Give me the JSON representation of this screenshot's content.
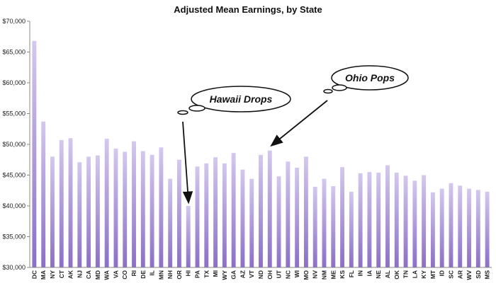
{
  "chart_data": {
    "type": "bar",
    "title": "Adjusted Mean Earnings, by State",
    "xlabel": "",
    "ylabel": "",
    "ylim": [
      30000,
      70000
    ],
    "yticks": [
      30000,
      35000,
      40000,
      45000,
      50000,
      55000,
      60000,
      65000,
      70000
    ],
    "ytick_labels": [
      "$30,000",
      "$35,000",
      "$40,000",
      "$45,000",
      "$50,000",
      "$55,000",
      "$60,000",
      "$65,000",
      "$70,000"
    ],
    "grid": false,
    "bar_color_top": "#d4c8ee",
    "bar_color_bottom": "#8b6fc6",
    "categories": [
      "DC",
      "MA",
      "NY",
      "CT",
      "AK",
      "NJ",
      "CA",
      "MD",
      "WA",
      "VA",
      "CO",
      "RI",
      "DE",
      "IL",
      "MN",
      "NH",
      "OR",
      "HI",
      "PA",
      "TX",
      "MI",
      "WY",
      "GA",
      "AZ",
      "VT",
      "ND",
      "OH",
      "UT",
      "NC",
      "WI",
      "MO",
      "NV",
      "NM",
      "ME",
      "KS",
      "FL",
      "IN",
      "IA",
      "NE",
      "AL",
      "OK",
      "TN",
      "LA",
      "KY",
      "MT",
      "ID",
      "SC",
      "AR",
      "WV",
      "SD",
      "MS"
    ],
    "values": [
      66800,
      53700,
      48000,
      50700,
      51000,
      47100,
      48000,
      48200,
      50900,
      49300,
      48800,
      50500,
      48900,
      48300,
      49500,
      44400,
      47500,
      40000,
      46400,
      46900,
      47900,
      46900,
      48600,
      45900,
      44400,
      48300,
      49000,
      44800,
      47200,
      46200,
      48000,
      43100,
      44400,
      43200,
      46300,
      42300,
      45300,
      45500,
      45400,
      46600,
      45400,
      44900,
      44100,
      45000,
      42200,
      42800,
      43700,
      43300,
      42800,
      42600,
      42300
    ],
    "annotations": [
      {
        "text": "Hawaii Drops",
        "target": "HI"
      },
      {
        "text": "Ohio Pops",
        "target": "OH"
      }
    ]
  }
}
